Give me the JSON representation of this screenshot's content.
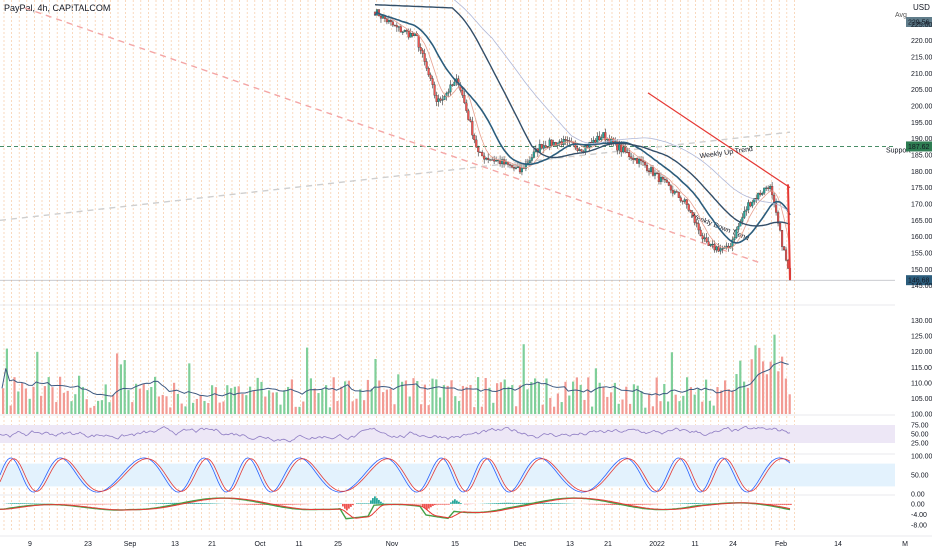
{
  "header": {
    "title": "PayPal, 4h, CAPITALCOM",
    "currency": "USD",
    "avg_label": "Avg"
  },
  "badges": {
    "current_price": "229.56",
    "support_price": "187.62",
    "last_price": "146.68",
    "support_label": "Support"
  },
  "colors": {
    "up": "#26a69a",
    "down": "#ef5350",
    "ma_blue": "#2c5d7c",
    "support": "#2e7d52",
    "trend_dash": "#f4a6a6",
    "grid_orange": "#f7c9a4",
    "rsi_band": "#ede7f6",
    "stoch_band": "#e3f2fd"
  },
  "chart_data": [
    {
      "type": "line",
      "panel": "price",
      "y_ticks": [
        145,
        150,
        155,
        160,
        165,
        170,
        175,
        180,
        185,
        190,
        195,
        200,
        205,
        210,
        215,
        220,
        225
      ],
      "ylim": [
        140,
        230
      ],
      "x_labels": [
        "9",
        "23",
        "Sep",
        "13",
        "21",
        "Oct",
        "11",
        "25",
        "Nov",
        "15",
        "Dec",
        "13",
        "21",
        "2022",
        "11",
        "24",
        "Feb",
        "14",
        "M"
      ],
      "annotations": [
        "Weekly Up Trend",
        "Weekly Down Trend",
        "Support"
      ],
      "series": [
        {
          "values": [
            229,
            224,
            221,
            201,
            208,
            185,
            183,
            180,
            188,
            189,
            187,
            191,
            186,
            182,
            176,
            170,
            157,
            156,
            170,
            176,
            147
          ]
        }
      ]
    },
    {
      "type": "bar",
      "panel": "volume",
      "y_ticks": [
        "130.00",
        "125.00",
        "120.00",
        "115.00",
        "110.00",
        "105.00",
        "100.00"
      ],
      "ylim": [
        100,
        135
      ]
    },
    {
      "type": "line",
      "panel": "rsi",
      "y_ticks": [
        "75.00",
        "50.00",
        "25.00"
      ],
      "ylim": [
        0,
        100
      ]
    },
    {
      "type": "line",
      "panel": "stochastic",
      "y_ticks": [
        "100.00",
        "50.00",
        "0.00"
      ],
      "ylim": [
        0,
        100
      ]
    },
    {
      "type": "area",
      "panel": "macd",
      "y_ticks": [
        "0.00",
        "-4.00",
        "-8.00"
      ],
      "ylim": [
        -10,
        3
      ]
    }
  ]
}
